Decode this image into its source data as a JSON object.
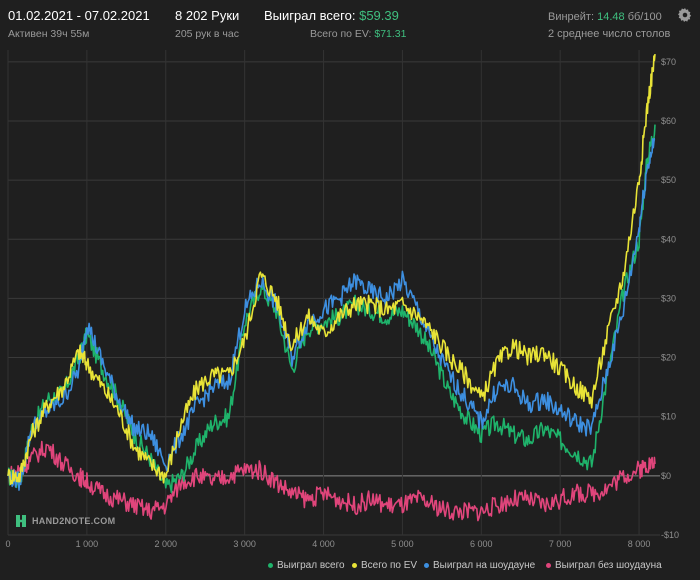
{
  "header": {
    "date_range": "01.02.2021 - 07.02.2021",
    "active_label": "Активен 39ч 55м",
    "hands_label": "8 202 Руки",
    "hands_per_hour": "205 рук в час",
    "won_total_label": "Выиграл всего:",
    "won_total_value": "$59.39",
    "ev_total_label": "Всего по EV:",
    "ev_total_value": "$71.31",
    "winrate_label": "Винрейт:",
    "winrate_value": "14.48",
    "winrate_unit": "бб/100",
    "tables_label": "2 среднее число столов"
  },
  "logo_text": "HAND2NOTE.COM",
  "icons": {
    "settings": "gear-icon",
    "logo": "hand2note-logo-icon"
  },
  "colors": {
    "background": "#1f1f1f",
    "won_total": "#1fb36b",
    "ev_total": "#e8e337",
    "showdown": "#3d8fe0",
    "non_showdown": "#e0457b",
    "accent_green": "#3fbf7f"
  },
  "chart_data": {
    "type": "line",
    "xlim": [
      0,
      8202
    ],
    "ylim": [
      -10,
      72
    ],
    "x_ticks": [
      0,
      1000,
      2000,
      3000,
      4000,
      5000,
      6000,
      7000,
      8000
    ],
    "x_tick_labels": [
      "0",
      "1 000",
      "2 000",
      "3 000",
      "4 000",
      "5 000",
      "6 000",
      "7 000",
      "8 000"
    ],
    "y_ticks": [
      -10,
      0,
      10,
      20,
      30,
      40,
      50,
      60,
      70
    ],
    "y_tick_labels": [
      "-$10",
      "$0",
      "$10",
      "$20",
      "$30",
      "$40",
      "$50",
      "$60",
      "$70"
    ],
    "grid": true,
    "legend_position": "bottom",
    "series": [
      {
        "name": "Выиграл всего",
        "color": "#1fb36b",
        "x": [
          0,
          150,
          300,
          500,
          700,
          900,
          1000,
          1200,
          1400,
          1600,
          1800,
          2000,
          2200,
          2400,
          2600,
          2800,
          3000,
          3200,
          3400,
          3600,
          3800,
          4000,
          4200,
          4400,
          4600,
          4800,
          5000,
          5200,
          5400,
          5600,
          5800,
          6000,
          6200,
          6400,
          6600,
          6800,
          7000,
          7200,
          7400,
          7600,
          7800,
          8000,
          8100,
          8202
        ],
        "y": [
          0,
          -1,
          8,
          13,
          14,
          20,
          24,
          18,
          13,
          7,
          3,
          -2,
          0,
          5,
          9,
          10,
          26,
          32,
          28,
          18,
          25,
          26,
          27,
          29,
          28,
          27,
          28,
          25,
          20,
          14,
          10,
          7,
          9,
          7,
          6,
          8,
          6,
          4,
          2,
          17,
          31,
          40,
          53,
          59.39
        ]
      },
      {
        "name": "Всего по EV",
        "color": "#e8e337",
        "x": [
          0,
          150,
          300,
          500,
          700,
          900,
          1000,
          1200,
          1400,
          1600,
          1800,
          2000,
          2200,
          2400,
          2600,
          2800,
          3000,
          3200,
          3400,
          3600,
          3800,
          4000,
          4200,
          4400,
          4600,
          4800,
          5000,
          5200,
          5400,
          5600,
          5800,
          6000,
          6200,
          6400,
          6600,
          6800,
          7000,
          7200,
          7400,
          7600,
          7800,
          8000,
          8100,
          8202
        ],
        "y": [
          0,
          0,
          7,
          12,
          15,
          21,
          19,
          15,
          11,
          5,
          2,
          0,
          9,
          15,
          17,
          17,
          23,
          34,
          30,
          22,
          27,
          24,
          27,
          29,
          29,
          28,
          29,
          27,
          24,
          20,
          17,
          13,
          19,
          22,
          20,
          21,
          18,
          15,
          13,
          24,
          34,
          50,
          62,
          71.31
        ]
      },
      {
        "name": "Выиграл на шоудауне",
        "color": "#3d8fe0",
        "x": [
          0,
          150,
          300,
          500,
          700,
          900,
          1000,
          1200,
          1400,
          1600,
          1800,
          2000,
          2200,
          2400,
          2600,
          2800,
          3000,
          3200,
          3400,
          3600,
          3800,
          4000,
          4200,
          4400,
          4600,
          4800,
          5000,
          5200,
          5400,
          5600,
          5800,
          6000,
          6200,
          6400,
          6600,
          6800,
          7000,
          7200,
          7400,
          7600,
          7800,
          8000,
          8100,
          8202
        ],
        "y": [
          0,
          -1,
          8,
          11,
          13,
          18,
          26,
          19,
          13,
          8,
          7,
          2,
          7,
          12,
          15,
          16,
          28,
          33,
          29,
          20,
          26,
          28,
          30,
          33,
          31,
          30,
          33,
          28,
          22,
          17,
          13,
          9,
          15,
          15,
          12,
          13,
          11,
          9,
          8,
          18,
          28,
          42,
          52,
          57
        ]
      },
      {
        "name": "Выиграл без шоудауна",
        "color": "#e0457b",
        "x": [
          0,
          150,
          300,
          500,
          700,
          900,
          1000,
          1200,
          1400,
          1600,
          1800,
          2000,
          2200,
          2400,
          2600,
          2800,
          3000,
          3200,
          3400,
          3600,
          3800,
          4000,
          4200,
          4400,
          4600,
          4800,
          5000,
          5200,
          5400,
          5600,
          5800,
          6000,
          6200,
          6400,
          6600,
          6800,
          7000,
          7200,
          7400,
          7600,
          7800,
          8000,
          8100,
          8202
        ],
        "y": [
          0,
          1,
          3,
          5,
          2,
          0,
          -1,
          -3,
          -4,
          -5,
          -6,
          -5,
          -1,
          0,
          -1,
          0,
          1,
          1,
          -1,
          -3,
          -4,
          -3,
          -4,
          -5,
          -4,
          -5,
          -5,
          -4,
          -5,
          -6,
          -6,
          -6,
          -5,
          -4,
          -4,
          -5,
          -4,
          -3,
          -3,
          -2,
          0,
          1,
          2,
          2
        ]
      }
    ]
  }
}
